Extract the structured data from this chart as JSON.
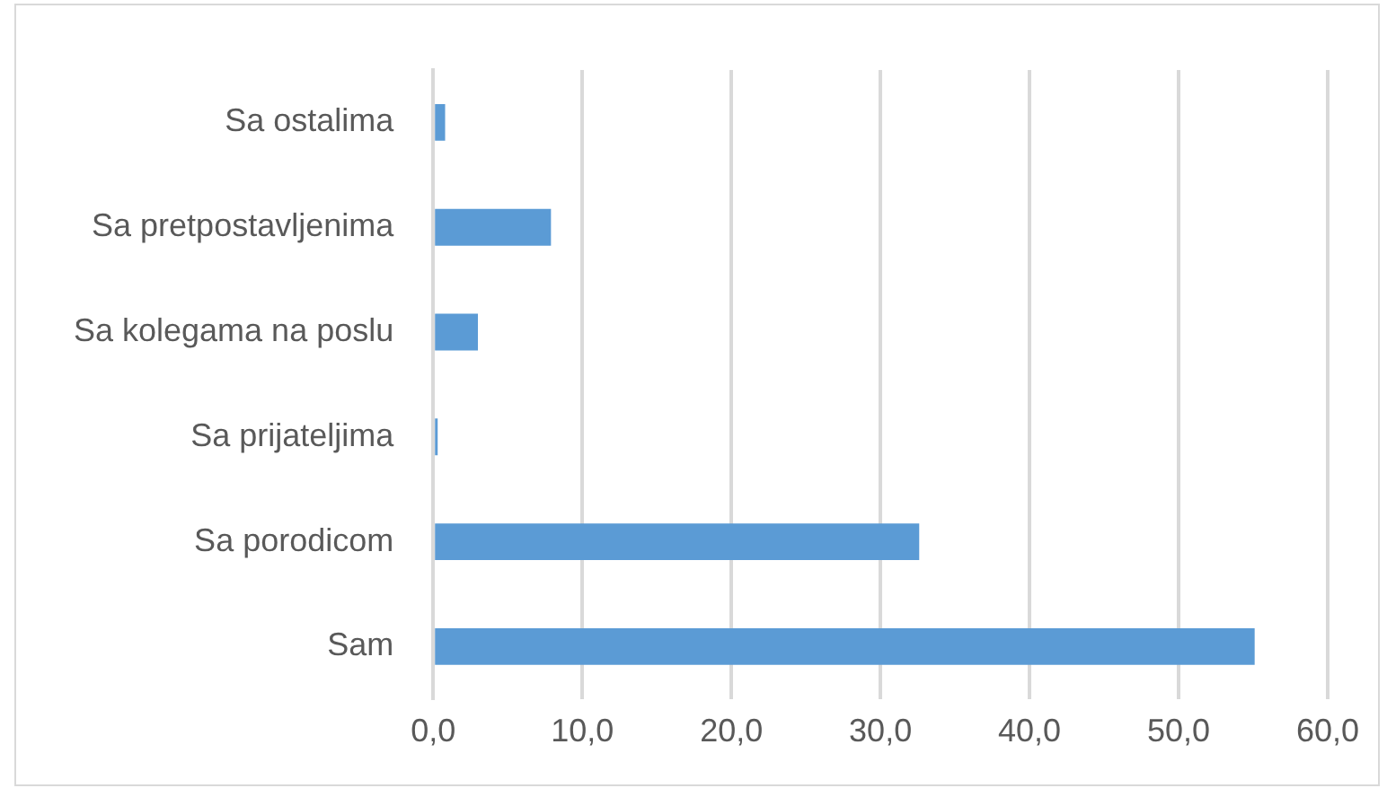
{
  "chart_data": {
    "type": "bar",
    "orientation": "horizontal",
    "categories": [
      "Sa ostalima",
      "Sa pretpostavljenima",
      "Sa kolegama na poslu",
      "Sa prijateljima",
      "Sa porodicom",
      "Sam"
    ],
    "values": [
      0.8,
      7.9,
      3.0,
      0.3,
      32.6,
      55.1
    ],
    "color": "#5b9bd5",
    "xlim": [
      0,
      60
    ],
    "xticks": [
      {
        "value": 0,
        "label": "0,0"
      },
      {
        "value": 10,
        "label": "10,0"
      },
      {
        "value": 20,
        "label": "20,0"
      },
      {
        "value": 30,
        "label": "30,0"
      },
      {
        "value": 40,
        "label": "40,0"
      },
      {
        "value": 50,
        "label": "50,0"
      },
      {
        "value": 60,
        "label": "60,0"
      }
    ],
    "grid": "x",
    "legend": false
  }
}
